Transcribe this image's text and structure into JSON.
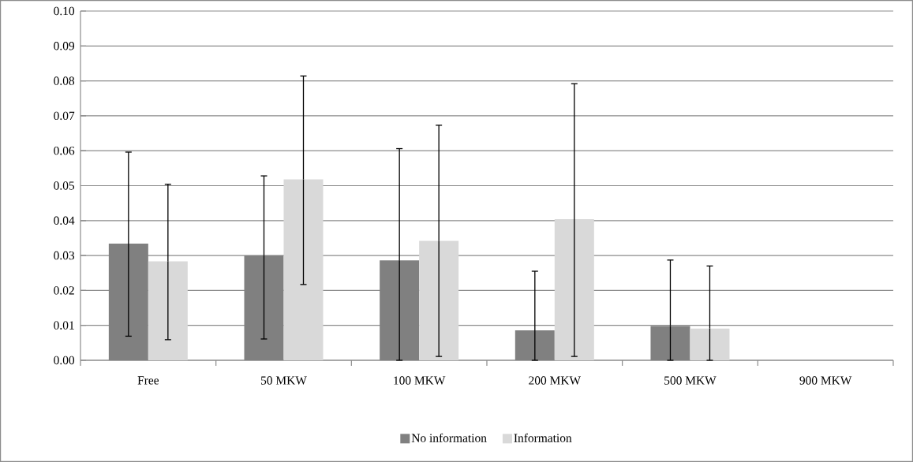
{
  "chart_data": {
    "type": "bar",
    "categories": [
      "Free",
      "50 MKW",
      "100 MKW",
      "200 MKW",
      "500 MKW",
      "900 MKW"
    ],
    "series": [
      {
        "name": "No information",
        "color": "#808080",
        "values": [
          0.0334,
          0.03,
          0.0286,
          0.0086,
          0.0098,
          0
        ],
        "errors": [
          [
            0.0069,
            0.0596
          ],
          [
            0.0061,
            0.0528
          ],
          [
            0,
            0.0606
          ],
          [
            0,
            0.0255
          ],
          [
            0,
            0.0287
          ],
          null
        ]
      },
      {
        "name": "Information",
        "color": "#d9d9d9",
        "values": [
          0.0283,
          0.0518,
          0.0342,
          0.0404,
          0.0091,
          0
        ],
        "errors": [
          [
            0.0059,
            0.0504
          ],
          [
            0.0217,
            0.0814
          ],
          [
            0.0011,
            0.0673
          ],
          [
            0.0011,
            0.0792
          ],
          [
            0,
            0.027
          ],
          null
        ]
      }
    ],
    "ylim": [
      0,
      0.1
    ],
    "yticks": [
      {
        "value": 0,
        "label": "0.00"
      },
      {
        "value": 0.01,
        "label": "0.01"
      },
      {
        "value": 0.02,
        "label": "0.02"
      },
      {
        "value": 0.03,
        "label": "0.03"
      },
      {
        "value": 0.04,
        "label": "0.04"
      },
      {
        "value": 0.05,
        "label": "0.05"
      },
      {
        "value": 0.06,
        "label": "0.06"
      },
      {
        "value": 0.07,
        "label": "0.07"
      },
      {
        "value": 0.08,
        "label": "0.08"
      },
      {
        "value": 0.09,
        "label": "0.09"
      },
      {
        "value": 0.1,
        "label": "0.10"
      }
    ],
    "grid": "y",
    "legend": "bottom"
  }
}
